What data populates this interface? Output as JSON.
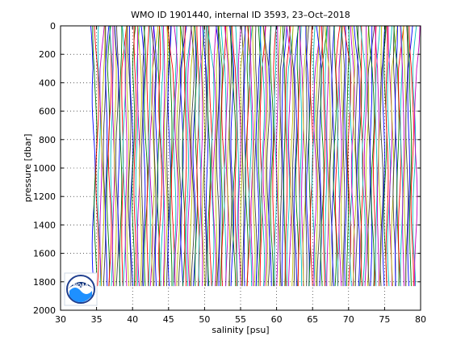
{
  "chart_data": {
    "type": "line",
    "title": "WMO ID 1901440, internal ID 3593, 23–Oct–2018",
    "xlabel": "salinity [psu]",
    "ylabel": "pressure [dbar]",
    "xlim": [
      30,
      80
    ],
    "ylim": [
      0,
      2000
    ],
    "y_reversed": true,
    "x_ticks": [
      30,
      35,
      40,
      45,
      50,
      55,
      60,
      65,
      70,
      75,
      80
    ],
    "y_ticks": [
      0,
      200,
      400,
      600,
      800,
      1000,
      1200,
      1400,
      1600,
      1800,
      2000
    ],
    "grid": "dotted",
    "profile_pressure_max": 1830,
    "profile_count": 180,
    "profile_offset_start": 34.6,
    "profile_offset_step": 0.25,
    "profile_colors": [
      "#0000ff",
      "#008000",
      "#ff0000",
      "#00bfbf",
      "#bf00bf",
      "#bfbf00",
      "#404040"
    ],
    "logo": {
      "name": "noaa-logo",
      "text": "NOAA"
    }
  }
}
